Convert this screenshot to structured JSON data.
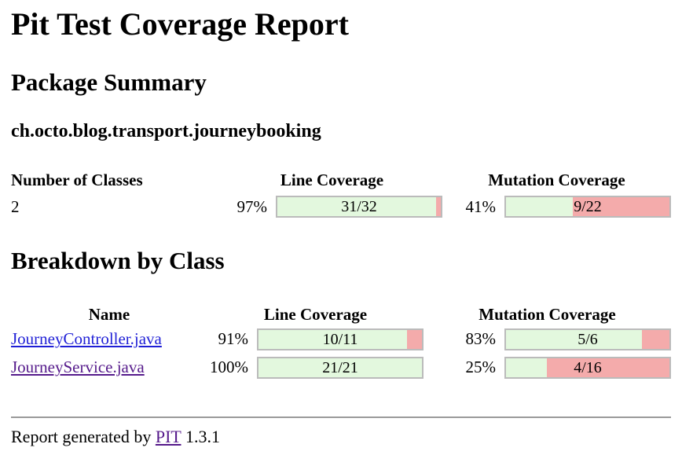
{
  "page": {
    "title": "Pit Test Coverage Report"
  },
  "colors": {
    "covered": "#E3F8DE",
    "uncovered": "#F4ABAB",
    "bar_border": "#BBBBBB",
    "link": "#1F1FD6",
    "link_visited": "#551A8B"
  },
  "package_summary": {
    "heading": "Package Summary",
    "package_name": "ch.octo.blog.transport.journeybooking",
    "table": {
      "headers": [
        "Number of Classes",
        "Line Coverage",
        "Mutation Coverage"
      ],
      "row": {
        "number_of_classes": "2",
        "line": {
          "pct": "97%",
          "label": "31/32",
          "fraction": 96.9
        },
        "mutation": {
          "pct": "41%",
          "label": "9/22",
          "fraction": 40.9
        }
      }
    }
  },
  "breakdown": {
    "heading": "Breakdown by Class",
    "table": {
      "headers": [
        "Name",
        "Line Coverage",
        "Mutation Coverage"
      ],
      "rows": [
        {
          "name": "JourneyController.java",
          "visited": false,
          "line": {
            "pct": "91%",
            "label": "10/11",
            "fraction": 90.9
          },
          "mutation": {
            "pct": "83%",
            "label": "5/6",
            "fraction": 83.3
          }
        },
        {
          "name": "JourneyService.java",
          "visited": true,
          "line": {
            "pct": "100%",
            "label": "21/21",
            "fraction": 100
          },
          "mutation": {
            "pct": "25%",
            "label": "4/16",
            "fraction": 25
          }
        }
      ]
    }
  },
  "footer": {
    "prefix": "Report generated by ",
    "link_label": "PIT",
    "version": " 1.3.1"
  }
}
